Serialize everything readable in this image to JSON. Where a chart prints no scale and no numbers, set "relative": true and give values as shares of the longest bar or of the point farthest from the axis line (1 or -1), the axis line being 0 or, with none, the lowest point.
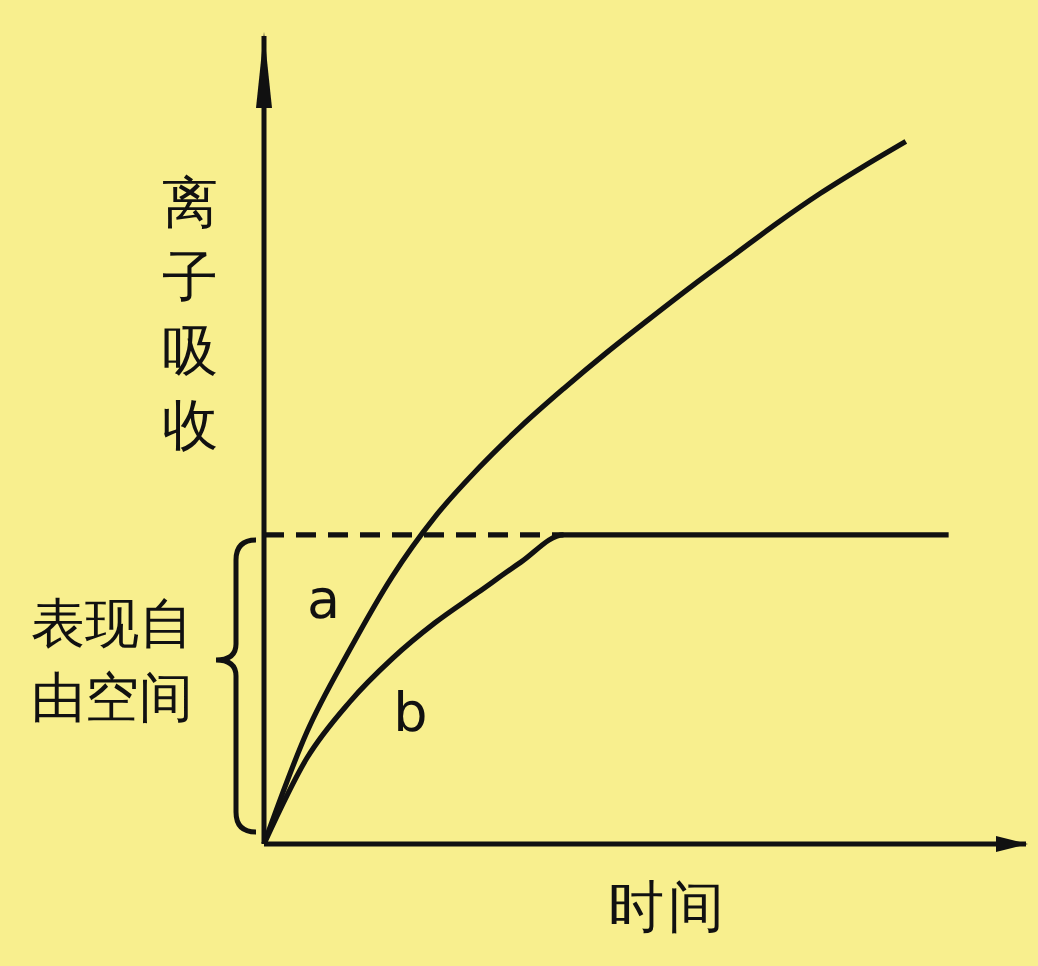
{
  "chart_data": {
    "type": "line",
    "xlabel": "时间",
    "ylabel": "离子吸收",
    "annotations": [
      "表现自由空间"
    ],
    "relative": true,
    "marker": "none",
    "line_style": "solid",
    "categories": [
      null,
      null,
      null,
      null,
      null,
      null,
      null,
      null,
      null,
      null,
      null,
      null,
      null,
      null,
      null,
      null,
      null
    ],
    "series": [
      {
        "name": "a",
        "color": "#111111",
        "values": [
          0,
          0.159,
          0.276,
          0.381,
          0.466,
          0.534,
          0.594,
          0.648,
          0.699,
          0.747,
          0.794,
          0.839,
          0.884,
          0.926,
          0.964,
          1,
          null
        ]
      },
      {
        "name": "b",
        "color": "#111111",
        "values": [
          0,
          0.122,
          0.202,
          0.264,
          0.315,
          0.358,
          0.401,
          0.44,
          0.44,
          0.44,
          0.44,
          0.44,
          0.44,
          0.44,
          0.44,
          0.44,
          0.44
        ]
      },
      {
        "color": "#111111",
        "line_style": "dashed",
        "values": [
          0.44,
          0.44,
          0.44,
          0.44,
          0.44,
          0.44,
          0.44,
          0.44,
          null,
          null,
          null,
          null,
          null,
          null,
          null,
          null,
          null
        ]
      }
    ]
  }
}
